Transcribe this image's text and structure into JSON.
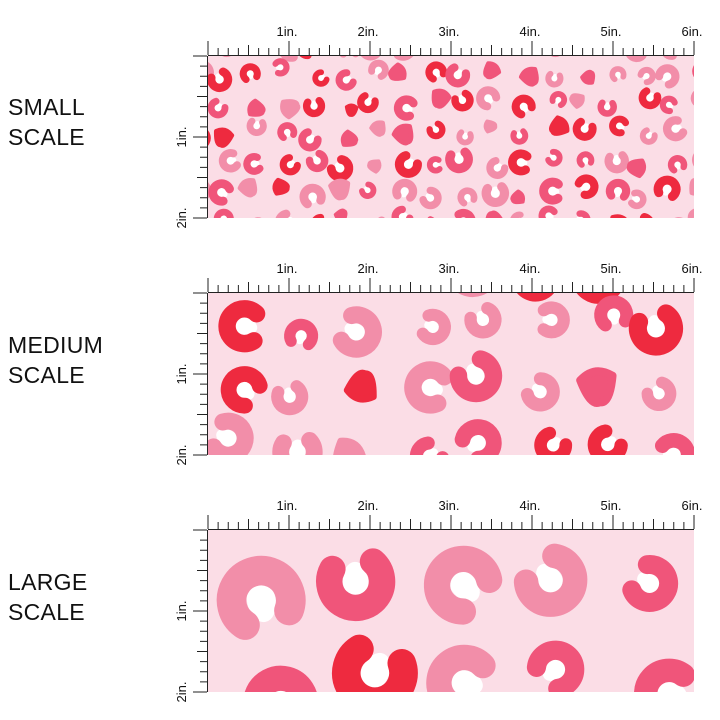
{
  "panels": [
    {
      "label_lines": [
        "SMALL",
        "SCALE"
      ],
      "pattern_scale": "small"
    },
    {
      "label_lines": [
        "MEDIUM",
        "SCALE"
      ],
      "pattern_scale": "medium"
    },
    {
      "label_lines": [
        "LARGE",
        "SCALE"
      ],
      "pattern_scale": "large"
    }
  ],
  "ruler": {
    "horizontal_labels": [
      "1in.",
      "2in.",
      "3in.",
      "4in.",
      "5in.",
      "6in."
    ],
    "vertical_labels": [
      "1in.",
      "2in."
    ]
  },
  "colors": {
    "background": "#FBDDE6",
    "red": "#EE2A3F",
    "pink": "#F0557A",
    "light_pink": "#F28EA9",
    "white": "#FFFFFF",
    "ruler": "#222222"
  }
}
